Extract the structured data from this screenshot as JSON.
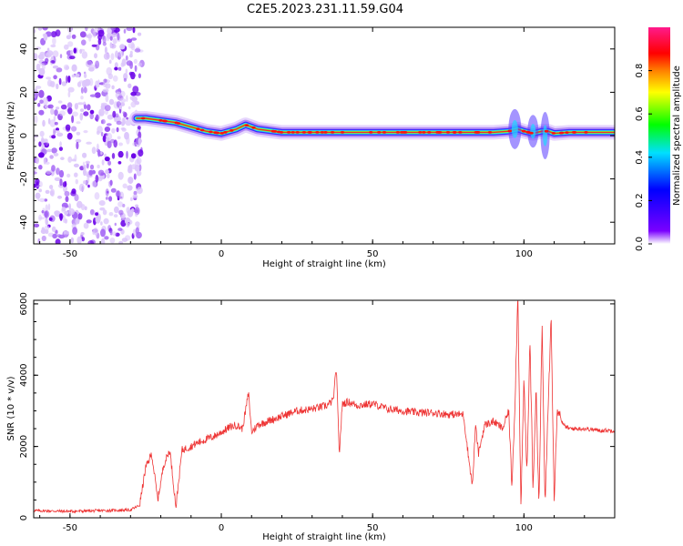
{
  "title": "C2E5.2023.231.11.59.G04",
  "chart_data": [
    {
      "type": "heatmap",
      "xlabel": "Height of straight line (km)",
      "ylabel": "Frequency (Hz)",
      "xlim": [
        -62,
        130
      ],
      "ylim": [
        -50,
        50
      ],
      "x_ticks": [
        -50,
        0,
        50,
        100
      ],
      "y_ticks": [
        40,
        20,
        0,
        -20,
        -40
      ],
      "grid": false,
      "colorbar": {
        "label": "Normalized spectral amplitude",
        "range": [
          0,
          1
        ],
        "ticks": [
          "0.0",
          "0.2",
          "0.4",
          "0.6",
          "0.8"
        ],
        "colormap": [
          "#ffffff",
          "#7a00ff",
          "#0000ff",
          "#00e0ff",
          "#00ff00",
          "#ffff00",
          "#ff8000",
          "#ff0000",
          "#ff1a8c"
        ]
      },
      "noise_region_x": [
        -62,
        -28
      ],
      "signal_track": {
        "x": [
          -28,
          -25,
          -20,
          -15,
          -10,
          -5,
          0,
          5,
          8,
          12,
          20,
          30,
          40,
          50,
          60,
          70,
          80,
          90,
          95,
          98,
          100,
          103,
          106,
          108,
          110,
          115,
          120,
          130
        ],
        "freq": [
          8,
          8,
          7,
          6,
          4,
          2,
          1,
          3,
          5,
          3,
          1.5,
          1.5,
          1.5,
          1.5,
          1.5,
          1.5,
          1.5,
          1.5,
          2,
          3,
          2,
          1,
          2,
          2,
          1,
          1.5,
          1.5,
          1.5
        ]
      }
    },
    {
      "type": "line",
      "xlabel": "Height of straight line (km)",
      "ylabel": "SNR (10 * v/v)",
      "xlim": [
        -62,
        130
      ],
      "ylim": [
        0,
        6100
      ],
      "x_ticks": [
        -50,
        0,
        50,
        100
      ],
      "y_ticks": [
        0,
        2000,
        4000,
        6000
      ],
      "grid": false,
      "series": [
        {
          "color": "#ee3333",
          "x": [
            -62,
            -50,
            -40,
            -30,
            -27,
            -25,
            -23,
            -21,
            -19,
            -17,
            -15,
            -13,
            -10,
            -8,
            -5,
            -2,
            0,
            3,
            5,
            7,
            9,
            10,
            12,
            15,
            20,
            25,
            30,
            35,
            37,
            38,
            39,
            40,
            42,
            45,
            50,
            55,
            60,
            65,
            70,
            75,
            80,
            82,
            83,
            84,
            85,
            87,
            90,
            93,
            95,
            96,
            97,
            98,
            99,
            100,
            101,
            102,
            103,
            104,
            105,
            106,
            107,
            108,
            109,
            110,
            111,
            113,
            115,
            120,
            125,
            130
          ],
          "values": [
            200,
            180,
            200,
            220,
            350,
            1400,
            1800,
            500,
            1500,
            1900,
            300,
            1900,
            2000,
            2100,
            2200,
            2300,
            2400,
            2550,
            2600,
            2500,
            3500,
            2400,
            2600,
            2700,
            2850,
            3000,
            3050,
            3150,
            3300,
            4200,
            1800,
            3200,
            3250,
            3150,
            3200,
            3050,
            3000,
            2950,
            2950,
            2900,
            2900,
            1500,
            900,
            2600,
            1800,
            2600,
            2700,
            2500,
            3000,
            900,
            3100,
            6300,
            300,
            3800,
            1200,
            5000,
            800,
            3600,
            400,
            5400,
            300,
            3100,
            5700,
            500,
            3100,
            2600,
            2500,
            2500,
            2450,
            2450
          ]
        }
      ]
    }
  ]
}
